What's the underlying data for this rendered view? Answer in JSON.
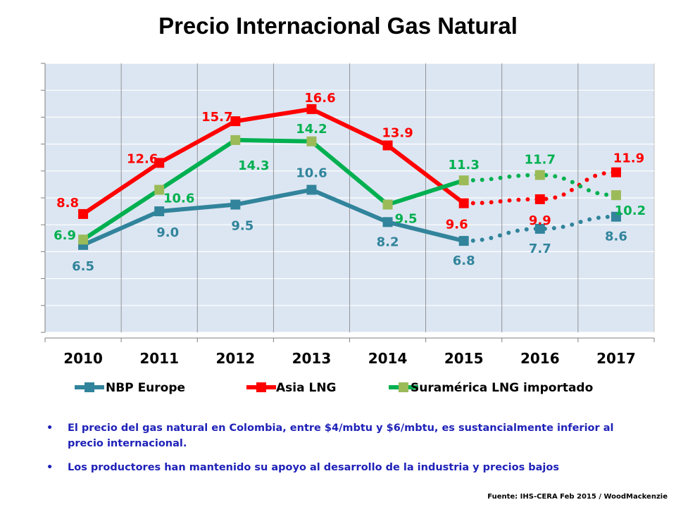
{
  "title": "Precio Internacional  Gas Natural",
  "chart_data": {
    "type": "line",
    "categories": [
      "2010",
      "2011",
      "2012",
      "2013",
      "2014",
      "2015",
      "2016",
      "2017"
    ],
    "ylim": [
      0,
      20
    ],
    "grid": true,
    "legend_position": "bottom",
    "series": [
      {
        "name": "NBP Europe",
        "color": "#31849b",
        "values": [
          6.5,
          9.0,
          9.5,
          10.6,
          8.2,
          6.8,
          7.7,
          8.6
        ],
        "labels": [
          "6.5",
          "9.0",
          "9.5",
          "10.6",
          "8.2",
          "6.8",
          "7.7",
          "8.6"
        ],
        "marker": "square",
        "projected_from": "2015"
      },
      {
        "name": "Asia LNG",
        "color": "#ff0000",
        "values": [
          8.8,
          12.6,
          15.7,
          16.6,
          13.9,
          9.6,
          9.9,
          11.9
        ],
        "labels": [
          "8.8",
          "12.6",
          "15.7",
          "16.6",
          "13.9",
          "9.6",
          "9.9",
          "11.9"
        ],
        "marker": "square",
        "projected_from": "2015"
      },
      {
        "name": "Suramérica LNG importado",
        "color": "#00b050",
        "marker_color": "#9bbb59",
        "values": [
          6.9,
          10.6,
          14.3,
          14.2,
          9.5,
          11.3,
          11.7,
          10.2
        ],
        "labels": [
          "6.9",
          "10.6",
          "14.3",
          "14.2",
          "9.5",
          "11.3",
          "11.7",
          "10.2"
        ],
        "marker": "square",
        "projected_from": "2015"
      }
    ]
  },
  "bullets": [
    "El precio del gas natural en Colombia, entre $4/mbtu y $6/mbtu, es sustancialmente inferior al precio internacional.",
    "Los productores han mantenido su apoyo al desarrollo de la industria y precios bajos"
  ],
  "source": "Fuente: IHS-CERA Feb 2015 / WoodMackenzie"
}
